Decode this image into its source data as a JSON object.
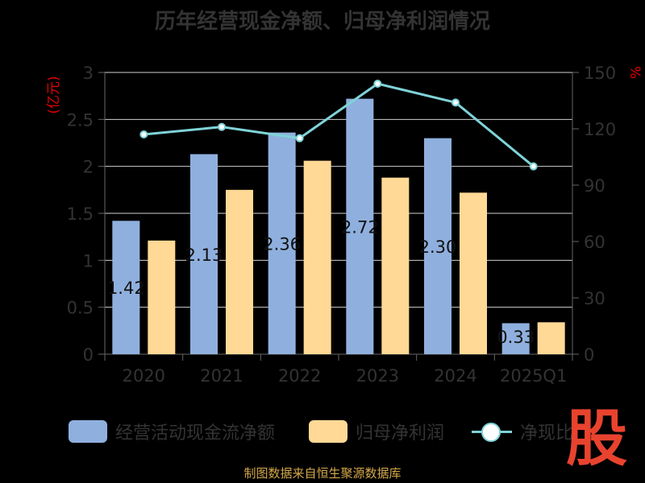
{
  "title": "历年经营现金净额、归母净利润情况",
  "source": "制图数据来自恒生聚源数据库",
  "logo_text": "股",
  "colors": {
    "operating_cash": "#8fb0de",
    "net_profit": "#ffd995",
    "ratio_line": "#7fd3d8",
    "axis_text": "#333333",
    "unit_text": "#e60000",
    "grid": "#cfcfcf"
  },
  "legend": [
    {
      "label": "经营活动现金流净额"
    },
    {
      "label": "归母净利润"
    },
    {
      "label": "净现比"
    }
  ],
  "chart_data": {
    "type": "bar",
    "title": "历年经营现金净额、归母净利润情况",
    "categories": [
      "2020",
      "2021",
      "2022",
      "2023",
      "2024",
      "2025Q1"
    ],
    "series": [
      {
        "name": "经营活动现金流净额",
        "axis": "left",
        "values": [
          1.42,
          2.13,
          2.36,
          2.72,
          2.3,
          0.33
        ],
        "data_labels": [
          "1.42",
          "2.13",
          "2.36",
          "2.72",
          "2.30",
          "0.33"
        ]
      },
      {
        "name": "归母净利润",
        "axis": "left",
        "values": [
          1.21,
          1.75,
          2.06,
          1.88,
          1.72,
          0.34
        ]
      },
      {
        "name": "净现比",
        "type": "line",
        "axis": "right",
        "values": [
          117,
          121,
          115,
          144,
          134,
          100
        ]
      }
    ],
    "y_left": {
      "label": "(亿元)",
      "ylim": [
        0,
        3
      ],
      "ticks": [
        "0",
        "0.5",
        "1",
        "1.5",
        "2",
        "2.5",
        "3"
      ]
    },
    "y_right": {
      "label": "%",
      "ylim": [
        0,
        150
      ],
      "ticks": [
        "0",
        "30",
        "60",
        "90",
        "120",
        "150"
      ]
    },
    "grid": true,
    "legend_position": "bottom"
  }
}
